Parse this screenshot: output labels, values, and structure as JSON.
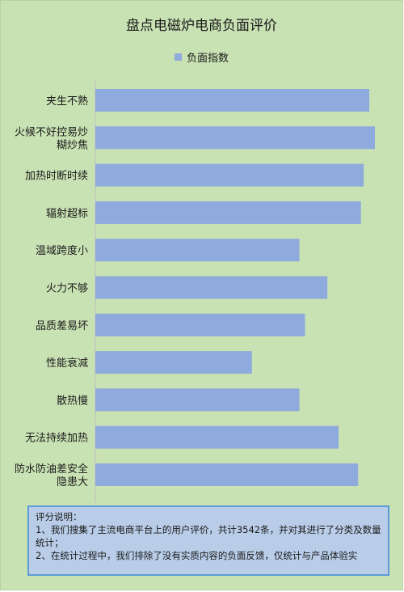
{
  "chart_data": {
    "type": "bar",
    "orientation": "horizontal",
    "title": "盘点电磁炉电商负面评价",
    "legend_position": "top",
    "grid": false,
    "xlim": [
      0,
      100
    ],
    "categories": [
      "夹生不熟",
      "火候不好控易炒糊炒焦",
      "加热时断时续",
      "辐射超标",
      "温域跨度小",
      "火力不够",
      "品质差易坏",
      "性能衰减",
      "散热慢",
      "无法持续加热",
      "防水防油差安全隐患大"
    ],
    "category_lines": [
      [
        "夹生不熟"
      ],
      [
        "火候不好控易炒",
        "糊炒焦"
      ],
      [
        "加热时断时续"
      ],
      [
        "辐射超标"
      ],
      [
        "温域跨度小"
      ],
      [
        "火力不够"
      ],
      [
        "品质差易坏"
      ],
      [
        "性能衰减"
      ],
      [
        "散热慢"
      ],
      [
        "无法持续加热"
      ],
      [
        "防水防油差安全",
        "隐患大"
      ]
    ],
    "series": [
      {
        "name": "负面指数",
        "color": "#8faadc",
        "values": [
          98,
          100,
          96,
          95,
          73,
          83,
          75,
          56,
          73,
          87,
          94
        ]
      }
    ]
  },
  "notes": {
    "heading": "评分说明：",
    "lines": [
      "1、我们搜集了主流电商平台上的用户评价，共计3542条，并对其进行了分类及数量统计；",
      "2、在统计过程中，我们排除了没有实质内容的负面反馈，仅统计与产品体验实"
    ]
  }
}
